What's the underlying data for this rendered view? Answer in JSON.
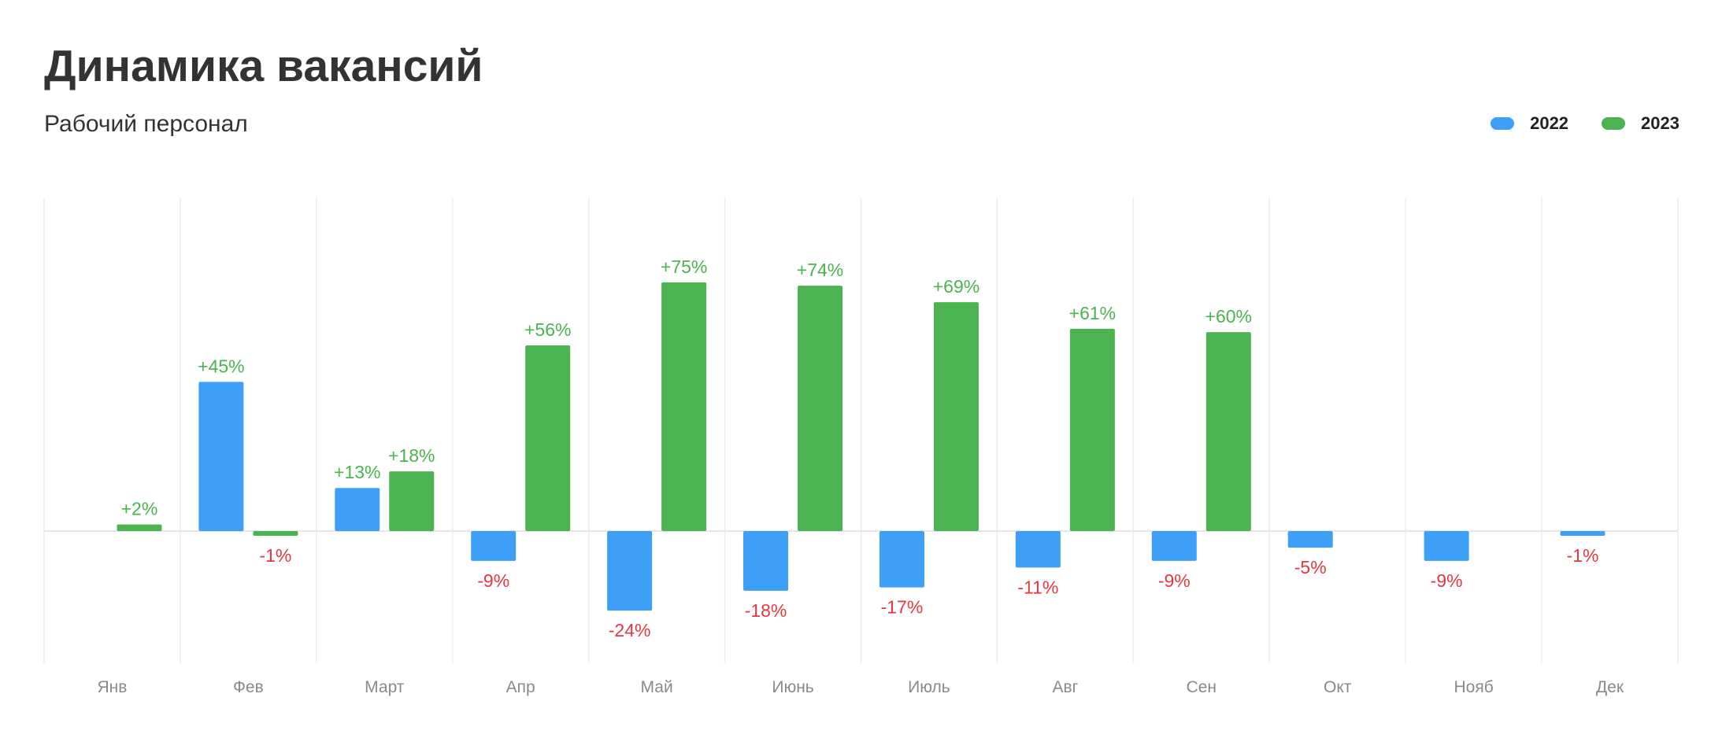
{
  "chart_data": {
    "type": "bar",
    "title": "Динамика вакансий",
    "subtitle": "Рабочий персонал",
    "categories": [
      "Янв",
      "Фев",
      "Март",
      "Апр",
      "Май",
      "Июнь",
      "Июль",
      "Авг",
      "Сен",
      "Окт",
      "Нояб",
      "Дек"
    ],
    "series": [
      {
        "name": "2022",
        "color": "#3d9ff5",
        "values": [
          null,
          45,
          13,
          -9,
          -24,
          -18,
          -17,
          -11,
          -9,
          -5,
          -9,
          -1
        ],
        "labels": [
          "",
          "",
          "+13%",
          "-9%",
          "-24%",
          "-18%",
          "-17%",
          "-11%",
          "-9%",
          "-5%",
          "-9%",
          "-1%"
        ]
      },
      {
        "name": "2023",
        "color": "#4bb34f",
        "values": [
          2,
          -1,
          18,
          56,
          75,
          74,
          69,
          61,
          60,
          null,
          null,
          null
        ],
        "labels": [
          "+2%",
          "-1%",
          "+18%",
          "+56%",
          "+75%",
          "+74%",
          "+69%",
          "+61%",
          "+60%",
          "",
          "",
          ""
        ]
      }
    ],
    "label_colors": {
      "positive": "#4bb34f",
      "negative": "#e5373f"
    },
    "floating_labels": [
      {
        "category": "Фев",
        "text": "+45%",
        "color": "#4bb34f"
      }
    ],
    "ylim": [
      -40,
      100
    ],
    "grid": true,
    "legend": "top-right"
  }
}
